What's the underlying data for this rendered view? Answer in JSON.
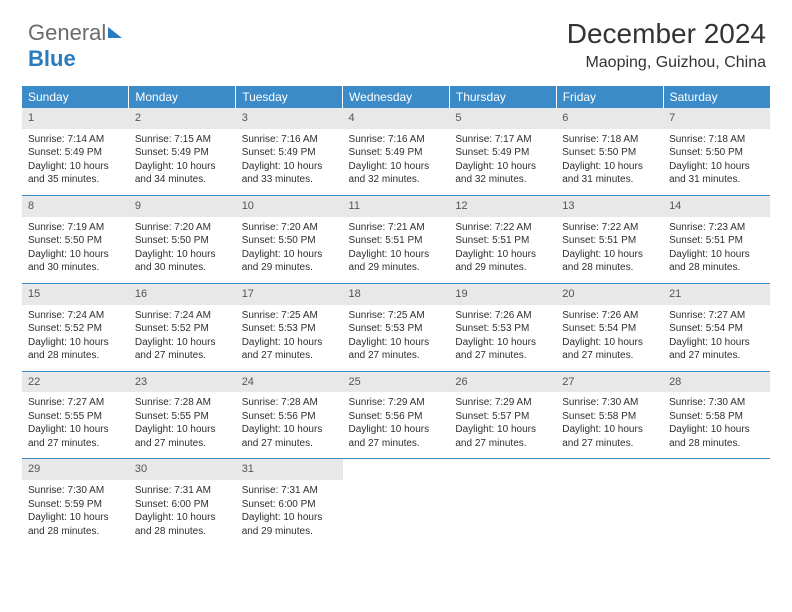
{
  "logo": {
    "part1": "General",
    "part2": "Blue"
  },
  "title": {
    "month": "December 2024",
    "location": "Maoping, Guizhou, China"
  },
  "colors": {
    "header_bg": "#3b8bc8",
    "header_text": "#ffffff",
    "daynum_bg": "#e8e8e8",
    "border": "#3b8bc8",
    "logo_blue": "#2b7bbf"
  },
  "daynames": [
    "Sunday",
    "Monday",
    "Tuesday",
    "Wednesday",
    "Thursday",
    "Friday",
    "Saturday"
  ],
  "weeks": [
    [
      {
        "n": "1",
        "sr": "Sunrise: 7:14 AM",
        "ss": "Sunset: 5:49 PM",
        "d1": "Daylight: 10 hours",
        "d2": "and 35 minutes."
      },
      {
        "n": "2",
        "sr": "Sunrise: 7:15 AM",
        "ss": "Sunset: 5:49 PM",
        "d1": "Daylight: 10 hours",
        "d2": "and 34 minutes."
      },
      {
        "n": "3",
        "sr": "Sunrise: 7:16 AM",
        "ss": "Sunset: 5:49 PM",
        "d1": "Daylight: 10 hours",
        "d2": "and 33 minutes."
      },
      {
        "n": "4",
        "sr": "Sunrise: 7:16 AM",
        "ss": "Sunset: 5:49 PM",
        "d1": "Daylight: 10 hours",
        "d2": "and 32 minutes."
      },
      {
        "n": "5",
        "sr": "Sunrise: 7:17 AM",
        "ss": "Sunset: 5:49 PM",
        "d1": "Daylight: 10 hours",
        "d2": "and 32 minutes."
      },
      {
        "n": "6",
        "sr": "Sunrise: 7:18 AM",
        "ss": "Sunset: 5:50 PM",
        "d1": "Daylight: 10 hours",
        "d2": "and 31 minutes."
      },
      {
        "n": "7",
        "sr": "Sunrise: 7:18 AM",
        "ss": "Sunset: 5:50 PM",
        "d1": "Daylight: 10 hours",
        "d2": "and 31 minutes."
      }
    ],
    [
      {
        "n": "8",
        "sr": "Sunrise: 7:19 AM",
        "ss": "Sunset: 5:50 PM",
        "d1": "Daylight: 10 hours",
        "d2": "and 30 minutes."
      },
      {
        "n": "9",
        "sr": "Sunrise: 7:20 AM",
        "ss": "Sunset: 5:50 PM",
        "d1": "Daylight: 10 hours",
        "d2": "and 30 minutes."
      },
      {
        "n": "10",
        "sr": "Sunrise: 7:20 AM",
        "ss": "Sunset: 5:50 PM",
        "d1": "Daylight: 10 hours",
        "d2": "and 29 minutes."
      },
      {
        "n": "11",
        "sr": "Sunrise: 7:21 AM",
        "ss": "Sunset: 5:51 PM",
        "d1": "Daylight: 10 hours",
        "d2": "and 29 minutes."
      },
      {
        "n": "12",
        "sr": "Sunrise: 7:22 AM",
        "ss": "Sunset: 5:51 PM",
        "d1": "Daylight: 10 hours",
        "d2": "and 29 minutes."
      },
      {
        "n": "13",
        "sr": "Sunrise: 7:22 AM",
        "ss": "Sunset: 5:51 PM",
        "d1": "Daylight: 10 hours",
        "d2": "and 28 minutes."
      },
      {
        "n": "14",
        "sr": "Sunrise: 7:23 AM",
        "ss": "Sunset: 5:51 PM",
        "d1": "Daylight: 10 hours",
        "d2": "and 28 minutes."
      }
    ],
    [
      {
        "n": "15",
        "sr": "Sunrise: 7:24 AM",
        "ss": "Sunset: 5:52 PM",
        "d1": "Daylight: 10 hours",
        "d2": "and 28 minutes."
      },
      {
        "n": "16",
        "sr": "Sunrise: 7:24 AM",
        "ss": "Sunset: 5:52 PM",
        "d1": "Daylight: 10 hours",
        "d2": "and 27 minutes."
      },
      {
        "n": "17",
        "sr": "Sunrise: 7:25 AM",
        "ss": "Sunset: 5:53 PM",
        "d1": "Daylight: 10 hours",
        "d2": "and 27 minutes."
      },
      {
        "n": "18",
        "sr": "Sunrise: 7:25 AM",
        "ss": "Sunset: 5:53 PM",
        "d1": "Daylight: 10 hours",
        "d2": "and 27 minutes."
      },
      {
        "n": "19",
        "sr": "Sunrise: 7:26 AM",
        "ss": "Sunset: 5:53 PM",
        "d1": "Daylight: 10 hours",
        "d2": "and 27 minutes."
      },
      {
        "n": "20",
        "sr": "Sunrise: 7:26 AM",
        "ss": "Sunset: 5:54 PM",
        "d1": "Daylight: 10 hours",
        "d2": "and 27 minutes."
      },
      {
        "n": "21",
        "sr": "Sunrise: 7:27 AM",
        "ss": "Sunset: 5:54 PM",
        "d1": "Daylight: 10 hours",
        "d2": "and 27 minutes."
      }
    ],
    [
      {
        "n": "22",
        "sr": "Sunrise: 7:27 AM",
        "ss": "Sunset: 5:55 PM",
        "d1": "Daylight: 10 hours",
        "d2": "and 27 minutes."
      },
      {
        "n": "23",
        "sr": "Sunrise: 7:28 AM",
        "ss": "Sunset: 5:55 PM",
        "d1": "Daylight: 10 hours",
        "d2": "and 27 minutes."
      },
      {
        "n": "24",
        "sr": "Sunrise: 7:28 AM",
        "ss": "Sunset: 5:56 PM",
        "d1": "Daylight: 10 hours",
        "d2": "and 27 minutes."
      },
      {
        "n": "25",
        "sr": "Sunrise: 7:29 AM",
        "ss": "Sunset: 5:56 PM",
        "d1": "Daylight: 10 hours",
        "d2": "and 27 minutes."
      },
      {
        "n": "26",
        "sr": "Sunrise: 7:29 AM",
        "ss": "Sunset: 5:57 PM",
        "d1": "Daylight: 10 hours",
        "d2": "and 27 minutes."
      },
      {
        "n": "27",
        "sr": "Sunrise: 7:30 AM",
        "ss": "Sunset: 5:58 PM",
        "d1": "Daylight: 10 hours",
        "d2": "and 27 minutes."
      },
      {
        "n": "28",
        "sr": "Sunrise: 7:30 AM",
        "ss": "Sunset: 5:58 PM",
        "d1": "Daylight: 10 hours",
        "d2": "and 28 minutes."
      }
    ],
    [
      {
        "n": "29",
        "sr": "Sunrise: 7:30 AM",
        "ss": "Sunset: 5:59 PM",
        "d1": "Daylight: 10 hours",
        "d2": "and 28 minutes."
      },
      {
        "n": "30",
        "sr": "Sunrise: 7:31 AM",
        "ss": "Sunset: 6:00 PM",
        "d1": "Daylight: 10 hours",
        "d2": "and 28 minutes."
      },
      {
        "n": "31",
        "sr": "Sunrise: 7:31 AM",
        "ss": "Sunset: 6:00 PM",
        "d1": "Daylight: 10 hours",
        "d2": "and 29 minutes."
      },
      {
        "empty": true
      },
      {
        "empty": true
      },
      {
        "empty": true
      },
      {
        "empty": true
      }
    ]
  ]
}
